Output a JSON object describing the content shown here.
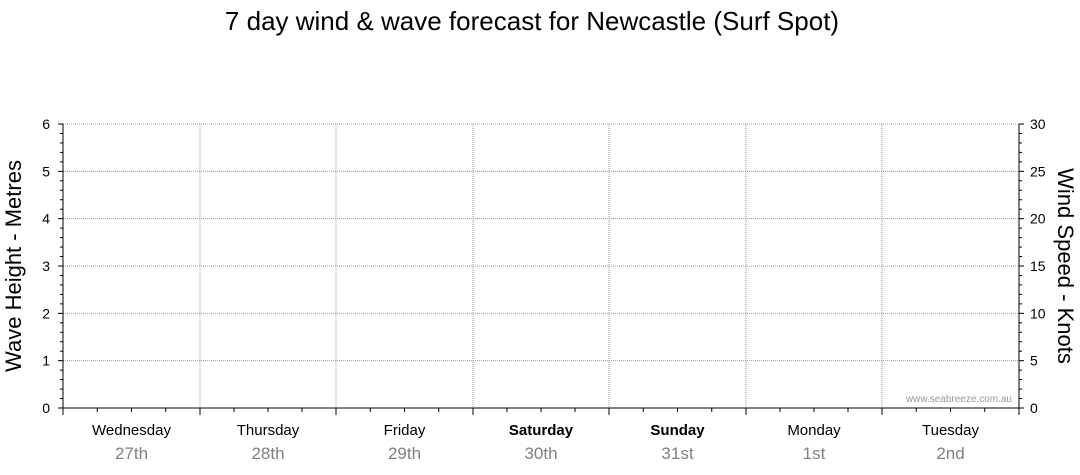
{
  "chart_data": {
    "type": "line",
    "title": "7 day wind & wave forecast for Newcastle (Surf Spot)",
    "ylabel_left": "Wave Height - Metres",
    "ylabel_right": "Wind Speed - Knots",
    "ylim_left": [
      0,
      6
    ],
    "ylim_right": [
      0,
      30
    ],
    "yticks_left": [
      "0",
      "1",
      "2",
      "3",
      "4",
      "5",
      "6"
    ],
    "yticks_right": [
      "0",
      "5",
      "10",
      "15",
      "20",
      "25",
      "30"
    ],
    "grid": true,
    "watermark": "www.seabreeze.com.au",
    "days": [
      {
        "day": "Wednesday",
        "date": "27th",
        "weekend": false
      },
      {
        "day": "Thursday",
        "date": "28th",
        "weekend": false
      },
      {
        "day": "Friday",
        "date": "29th",
        "weekend": false
      },
      {
        "day": "Saturday",
        "date": "30th",
        "weekend": true
      },
      {
        "day": "Sunday",
        "date": "31st",
        "weekend": true
      },
      {
        "day": "Monday",
        "date": "1st",
        "weekend": false
      },
      {
        "day": "Tuesday",
        "date": "2nd",
        "weekend": false
      }
    ],
    "series": [],
    "colors": {
      "axis": "#000000",
      "grid": "#999999",
      "date_text": "#808080",
      "watermark": "#999999"
    }
  }
}
